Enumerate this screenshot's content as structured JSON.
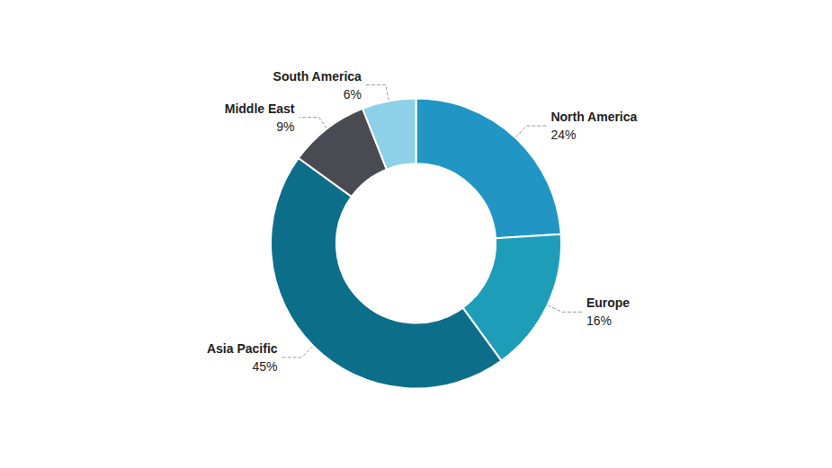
{
  "chart_data": {
    "type": "donut",
    "categories": [
      "North America",
      "Europe",
      "Asia Pacific",
      "Middle East",
      "South America"
    ],
    "values": [
      24,
      16,
      45,
      9,
      6
    ],
    "value_labels": [
      "24%",
      "16%",
      "45%",
      "9%",
      "6%"
    ],
    "colors": [
      "#2196C4",
      "#1E9DB8",
      "#0D6E8A",
      "#4A4A52",
      "#8DD0E8"
    ],
    "data_labels": true,
    "legend": false
  }
}
